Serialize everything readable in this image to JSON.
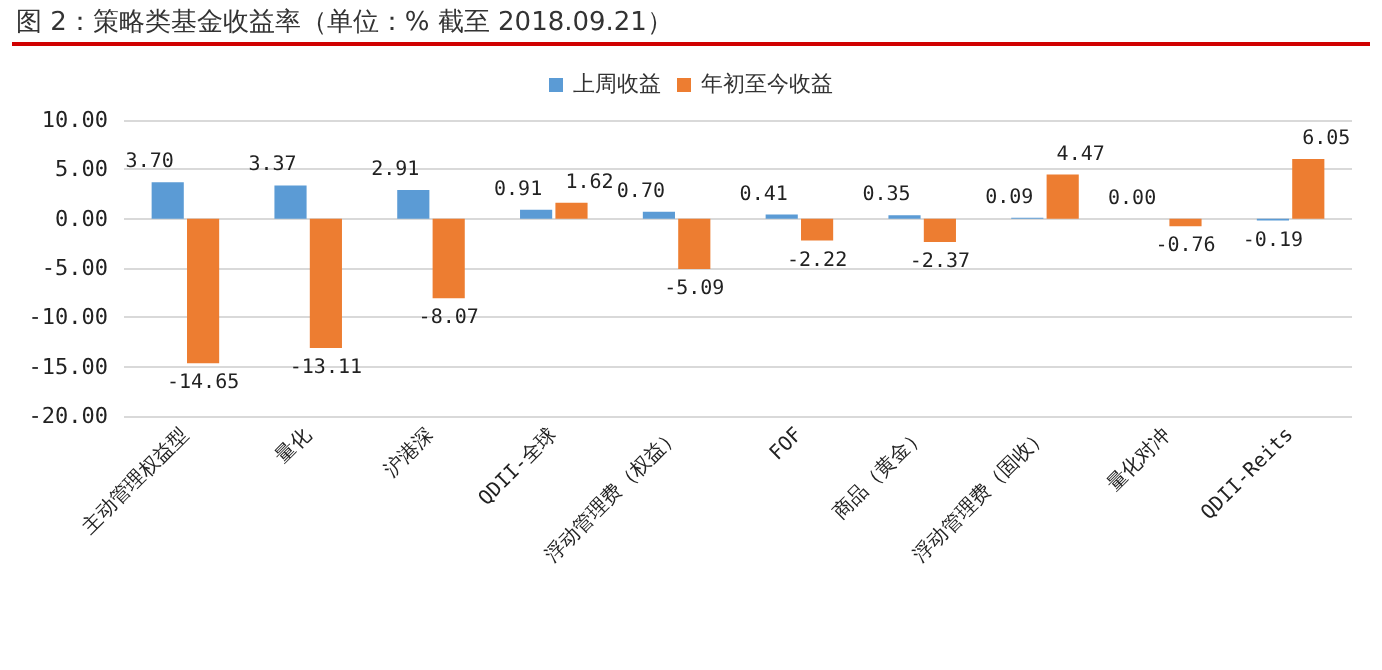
{
  "chart_data": {
    "type": "bar",
    "title": "图 2：策略类基金收益率（单位：% 截至 2018.09.21）",
    "categories": [
      "主动管理权益型",
      "量化",
      "沪港深",
      "QDII-全球",
      "浮动管理费（权益）",
      "FOF",
      "商品（黄金）",
      "浮动管理费（固收）",
      "量化对冲",
      "QDII-Reits"
    ],
    "series": [
      {
        "name": "上周收益",
        "color": "#5b9bd5",
        "values": [
          3.7,
          3.37,
          2.91,
          0.91,
          0.7,
          0.41,
          0.35,
          0.09,
          0.0,
          -0.19
        ],
        "value_labels": [
          "3.70",
          "3.37",
          "2.91",
          "0.91",
          "0.70",
          "0.41",
          "0.35",
          "0.09",
          "0.00",
          "-0.19"
        ]
      },
      {
        "name": "年初至今收益",
        "color": "#ed7d31",
        "values": [
          -14.65,
          -13.11,
          -8.07,
          1.62,
          -5.09,
          -2.22,
          -2.37,
          4.47,
          -0.76,
          6.05
        ],
        "value_labels": [
          "-14.65",
          "-13.11",
          "-8.07",
          "1.62",
          "-5.09",
          "-2.22",
          "-2.37",
          "4.47",
          "-0.76",
          "6.05"
        ]
      }
    ],
    "ylim": [
      -20,
      10
    ],
    "yticks": [
      {
        "value": -20,
        "label": "-20.00"
      },
      {
        "value": -15,
        "label": "-15.00"
      },
      {
        "value": -10,
        "label": "-10.00"
      },
      {
        "value": -5,
        "label": "-5.00"
      },
      {
        "value": 0,
        "label": "0.00"
      },
      {
        "value": 5,
        "label": "5.00"
      },
      {
        "value": 10,
        "label": "10.00"
      }
    ],
    "grid": "y",
    "legend": "top"
  }
}
